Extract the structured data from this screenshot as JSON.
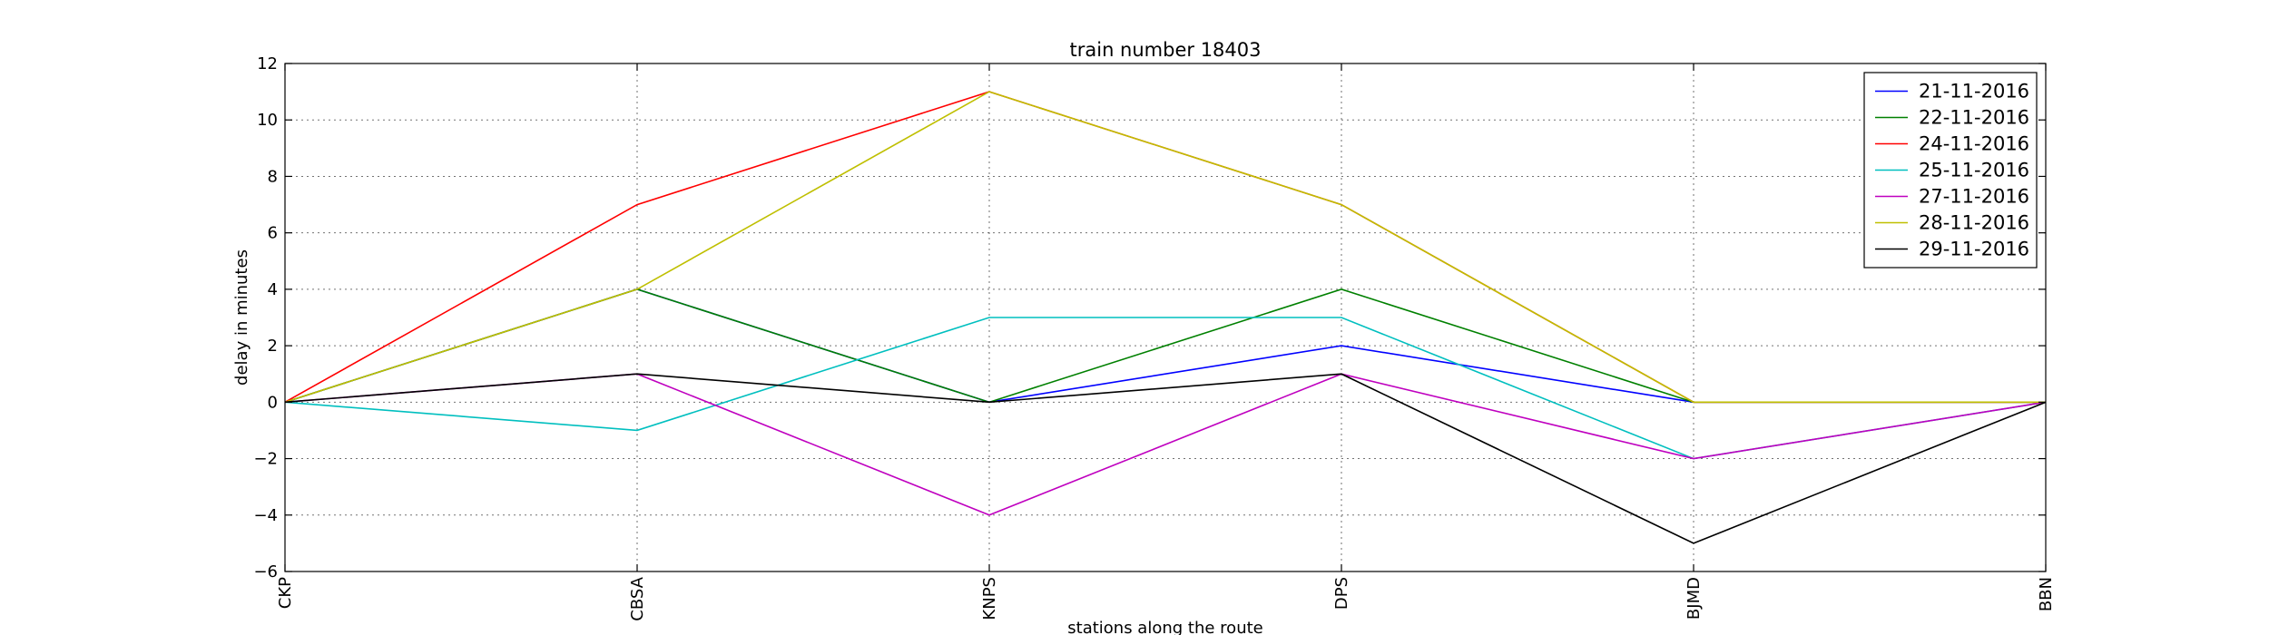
{
  "chart_data": {
    "type": "line",
    "title": "train number 18403",
    "xlabel": "stations along the route",
    "ylabel": "delay in minutes",
    "categories": [
      "CKP",
      "CBSA",
      "KNPS",
      "DPS",
      "BJMD",
      "BBN"
    ],
    "ylim": [
      -6,
      12
    ],
    "yticks": [
      -6,
      -4,
      -2,
      0,
      2,
      4,
      6,
      8,
      10,
      12
    ],
    "grid": true,
    "legend_position": "top-right",
    "series": [
      {
        "name": "21-11-2016",
        "color": "#0000ff",
        "values": [
          0,
          4,
          0,
          2,
          0,
          0
        ]
      },
      {
        "name": "22-11-2016",
        "color": "#008000",
        "values": [
          0,
          4,
          0,
          4,
          0,
          0
        ]
      },
      {
        "name": "24-11-2016",
        "color": "#ff0000",
        "values": [
          0,
          7,
          11,
          7,
          0,
          0
        ]
      },
      {
        "name": "25-11-2016",
        "color": "#00bfbf",
        "values": [
          0,
          -1,
          3,
          3,
          -2,
          0
        ]
      },
      {
        "name": "27-11-2016",
        "color": "#bf00bf",
        "values": [
          0,
          1,
          -4,
          1,
          -2,
          0
        ]
      },
      {
        "name": "28-11-2016",
        "color": "#bfbf00",
        "values": [
          0,
          4,
          11,
          7,
          0,
          0
        ]
      },
      {
        "name": "29-11-2016",
        "color": "#000000",
        "values": [
          0,
          1,
          0,
          1,
          -5,
          0
        ]
      }
    ]
  }
}
